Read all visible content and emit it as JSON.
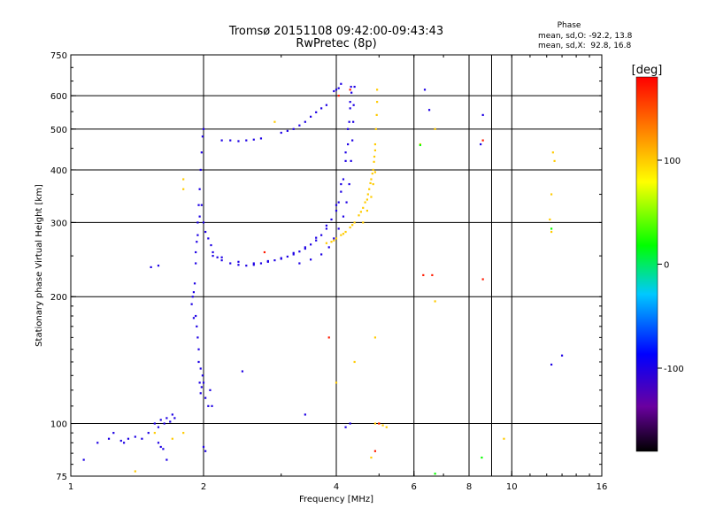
{
  "chart_data": {
    "type": "scatter",
    "title": "Tromsø 20151108 09:42:00-09:43:43",
    "subtitle": "RwPretec (8p)",
    "phase_info": {
      "heading": "Phase",
      "line_o": "mean, sd,O: -92.2, 13.8",
      "line_x": "mean, sd,X:  92.8, 16.8"
    },
    "xlabel": "Frequency [MHz]",
    "ylabel": "Stationary phase Virtual Height [km]",
    "x_scale": "log",
    "y_scale": "log",
    "xlim": [
      1,
      16
    ],
    "ylim": [
      75,
      750
    ],
    "x_ticks": [
      {
        "value": 1,
        "label": "1"
      },
      {
        "value": 2,
        "label": "2"
      },
      {
        "value": 4,
        "label": "4"
      },
      {
        "value": 6,
        "label": "6"
      },
      {
        "value": 8,
        "label": "8"
      },
      {
        "value": 10,
        "label": "10"
      },
      {
        "value": 16,
        "label": "16"
      }
    ],
    "x_grid": [
      2,
      4,
      6,
      8,
      9,
      10
    ],
    "y_ticks": [
      {
        "value": 75,
        "label": "75"
      },
      {
        "value": 100,
        "label": "100"
      },
      {
        "value": 200,
        "label": "200"
      },
      {
        "value": 300,
        "label": "300"
      },
      {
        "value": 400,
        "label": "400"
      },
      {
        "value": 500,
        "label": "500"
      },
      {
        "value": 600,
        "label": "600"
      },
      {
        "value": 750,
        "label": "750"
      }
    ],
    "colorbar": {
      "label": "[deg]",
      "range": [
        -180,
        180
      ],
      "ticks": [
        {
          "value": 100,
          "label": "100"
        },
        {
          "value": 0,
          "label": "0"
        },
        {
          "value": -100,
          "label": "-100"
        }
      ]
    },
    "grid": true,
    "traces": [
      {
        "phase": -100,
        "points": [
          [
            1.89,
            200
          ],
          [
            1.9,
            205
          ],
          [
            1.91,
            215
          ],
          [
            1.92,
            240
          ],
          [
            1.93,
            270
          ],
          [
            1.94,
            300
          ],
          [
            1.95,
            330
          ],
          [
            1.96,
            360
          ],
          [
            1.97,
            400
          ],
          [
            1.98,
            440
          ],
          [
            1.99,
            480
          ],
          [
            2.0,
            500
          ],
          [
            1.92,
            255
          ],
          [
            1.94,
            280
          ],
          [
            1.96,
            310
          ],
          [
            1.98,
            330
          ],
          [
            2.0,
            300
          ],
          [
            2.02,
            285
          ],
          [
            2.05,
            275
          ],
          [
            2.08,
            265
          ],
          [
            2.1,
            255
          ],
          [
            2.15,
            248
          ],
          [
            2.2,
            244
          ],
          [
            2.3,
            240
          ],
          [
            2.4,
            238
          ],
          [
            2.5,
            237
          ],
          [
            2.6,
            238
          ],
          [
            2.7,
            240
          ],
          [
            2.8,
            242
          ],
          [
            2.9,
            244
          ],
          [
            3.0,
            246
          ],
          [
            3.1,
            249
          ],
          [
            3.2,
            252
          ],
          [
            3.3,
            256
          ],
          [
            3.4,
            260
          ],
          [
            3.5,
            266
          ],
          [
            3.6,
            272
          ],
          [
            3.7,
            280
          ],
          [
            3.8,
            290
          ],
          [
            3.9,
            305
          ],
          [
            4.0,
            320
          ],
          [
            4.05,
            335
          ],
          [
            4.1,
            355
          ],
          [
            4.15,
            380
          ],
          [
            4.2,
            420
          ],
          [
            4.25,
            460
          ],
          [
            4.28,
            520
          ],
          [
            4.3,
            580
          ],
          [
            4.32,
            630
          ],
          [
            2.1,
            250
          ],
          [
            2.2,
            248
          ],
          [
            2.4,
            242
          ],
          [
            2.6,
            240
          ],
          [
            2.8,
            243
          ],
          [
            3.0,
            247
          ],
          [
            3.2,
            254
          ],
          [
            3.4,
            262
          ],
          [
            3.6,
            276
          ],
          [
            3.8,
            295
          ],
          [
            4.0,
            330
          ],
          [
            4.1,
            370
          ],
          [
            4.2,
            440
          ],
          [
            4.25,
            500
          ],
          [
            4.3,
            560
          ],
          [
            4.33,
            610
          ],
          [
            3.3,
            240
          ],
          [
            3.5,
            245
          ],
          [
            3.7,
            252
          ],
          [
            3.85,
            262
          ],
          [
            3.95,
            275
          ],
          [
            4.05,
            290
          ],
          [
            4.15,
            310
          ],
          [
            4.22,
            335
          ],
          [
            4.28,
            370
          ],
          [
            4.32,
            420
          ],
          [
            4.35,
            470
          ],
          [
            4.37,
            520
          ],
          [
            4.38,
            570
          ],
          [
            4.4,
            630
          ],
          [
            3.0,
            490
          ],
          [
            3.1,
            495
          ],
          [
            3.2,
            500
          ],
          [
            3.3,
            510
          ],
          [
            3.4,
            520
          ],
          [
            3.5,
            535
          ],
          [
            3.6,
            548
          ],
          [
            3.7,
            560
          ],
          [
            3.8,
            570
          ],
          [
            2.2,
            470
          ],
          [
            2.3,
            470
          ],
          [
            2.4,
            468
          ],
          [
            2.5,
            470
          ],
          [
            2.6,
            472
          ],
          [
            2.7,
            475
          ],
          [
            3.95,
            615
          ],
          [
            4.0,
            620
          ],
          [
            4.05,
            625
          ],
          [
            4.1,
            640
          ],
          [
            1.94,
            160
          ],
          [
            1.95,
            140
          ],
          [
            1.96,
            125
          ],
          [
            1.97,
            118
          ],
          [
            1.98,
            122
          ],
          [
            1.99,
            130
          ],
          [
            2.0,
            125
          ],
          [
            2.02,
            115
          ],
          [
            2.05,
            110
          ],
          [
            2.07,
            120
          ],
          [
            2.09,
            110
          ],
          [
            1.92,
            180
          ],
          [
            1.93,
            170
          ],
          [
            1.95,
            150
          ],
          [
            1.97,
            135
          ],
          [
            1.55,
            100
          ],
          [
            1.58,
            98
          ],
          [
            1.6,
            102
          ],
          [
            1.63,
            100
          ],
          [
            1.65,
            103
          ],
          [
            1.68,
            101
          ],
          [
            1.7,
            105
          ],
          [
            1.72,
            103
          ],
          [
            1.5,
            95
          ],
          [
            1.45,
            92
          ],
          [
            1.4,
            93
          ],
          [
            1.35,
            92
          ],
          [
            1.3,
            91
          ],
          [
            1.32,
            90
          ],
          [
            1.25,
            95
          ],
          [
            1.22,
            92
          ],
          [
            1.58,
            90
          ],
          [
            1.6,
            88
          ],
          [
            1.62,
            87
          ],
          [
            1.52,
            235
          ],
          [
            1.58,
            237
          ],
          [
            2.45,
            133
          ],
          [
            3.4,
            105
          ],
          [
            2.0,
            88
          ],
          [
            2.02,
            86
          ],
          [
            1.65,
            82
          ],
          [
            1.07,
            82
          ],
          [
            1.15,
            90
          ],
          [
            1.9,
            178
          ],
          [
            1.88,
            192
          ],
          [
            6.35,
            620
          ],
          [
            6.5,
            555
          ],
          [
            8.6,
            540
          ],
          [
            8.5,
            460
          ],
          [
            12.3,
            138
          ],
          [
            13.0,
            145
          ],
          [
            4.3,
            100
          ],
          [
            4.2,
            98
          ]
        ]
      },
      {
        "phase": 100,
        "points": [
          [
            3.9,
            270
          ],
          [
            4.0,
            275
          ],
          [
            4.1,
            280
          ],
          [
            4.2,
            285
          ],
          [
            4.3,
            292
          ],
          [
            4.4,
            300
          ],
          [
            4.5,
            312
          ],
          [
            4.6,
            325
          ],
          [
            4.7,
            340
          ],
          [
            4.75,
            360
          ],
          [
            4.8,
            380
          ],
          [
            4.85,
            400
          ],
          [
            4.88,
            430
          ],
          [
            4.9,
            460
          ],
          [
            4.92,
            500
          ],
          [
            4.94,
            540
          ],
          [
            4.95,
            580
          ],
          [
            4.95,
            620
          ],
          [
            3.8,
            268
          ],
          [
            3.95,
            272
          ],
          [
            4.15,
            282
          ],
          [
            4.35,
            296
          ],
          [
            4.55,
            318
          ],
          [
            4.65,
            335
          ],
          [
            4.72,
            350
          ],
          [
            4.78,
            372
          ],
          [
            4.83,
            392
          ],
          [
            4.87,
            418
          ],
          [
            4.9,
            445
          ],
          [
            4.6,
            300
          ],
          [
            4.7,
            320
          ],
          [
            4.8,
            345
          ],
          [
            4.85,
            370
          ],
          [
            4.9,
            395
          ],
          [
            4.9,
            100
          ],
          [
            5.0,
            100
          ],
          [
            5.1,
            99
          ],
          [
            5.2,
            98
          ],
          [
            4.9,
            160
          ],
          [
            4.4,
            140
          ],
          [
            4.0,
            125
          ],
          [
            2.9,
            520
          ],
          [
            1.8,
            360
          ],
          [
            1.8,
            380
          ],
          [
            6.7,
            195
          ],
          [
            9.6,
            92
          ],
          [
            6.2,
            460
          ],
          [
            12.5,
            420
          ],
          [
            12.4,
            440
          ],
          [
            12.3,
            350
          ],
          [
            12.2,
            305
          ],
          [
            12.3,
            285
          ],
          [
            1.4,
            77
          ],
          [
            1.55,
            95
          ],
          [
            1.8,
            95
          ],
          [
            1.7,
            92
          ],
          [
            4.8,
            83
          ],
          [
            6.7,
            500
          ]
        ]
      },
      {
        "phase": 170,
        "points": [
          [
            3.85,
            160
          ],
          [
            6.3,
            225
          ],
          [
            6.6,
            225
          ],
          [
            8.6,
            470
          ],
          [
            8.6,
            220
          ],
          [
            4.9,
            86
          ],
          [
            5.0,
            100
          ],
          [
            2.75,
            255
          ],
          [
            4.05,
            600
          ],
          [
            4.3,
            620
          ]
        ]
      },
      {
        "phase": 20,
        "points": [
          [
            6.2,
            458
          ],
          [
            8.55,
            83
          ],
          [
            6.7,
            76
          ],
          [
            12.3,
            290
          ]
        ]
      }
    ]
  }
}
